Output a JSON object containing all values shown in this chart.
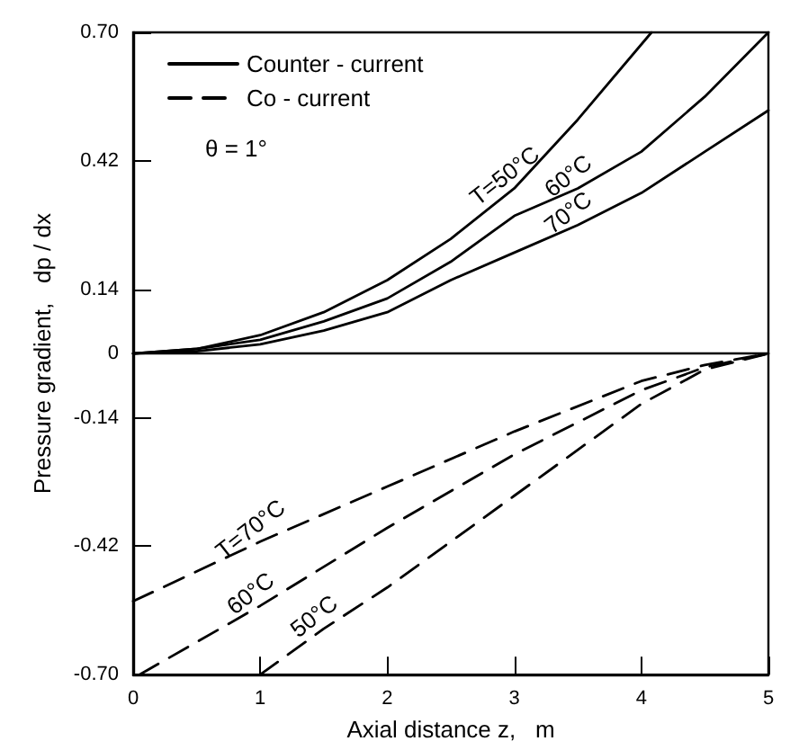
{
  "chart_data": {
    "type": "line",
    "xlabel": "Axial distance z,   m",
    "ylabel": "Pressure gradient,   dp / dx",
    "xlim": [
      0,
      5
    ],
    "xticks": [
      0,
      1,
      2,
      3,
      4,
      5
    ],
    "ylim": [
      -0.7,
      0.7
    ],
    "yticks": [
      {
        "value": -0.7,
        "label": "-0.70"
      },
      {
        "value": -0.42,
        "label": "-0.42"
      },
      {
        "value": -0.14,
        "label": "-0.14"
      },
      0,
      {
        "value": 0.14,
        "label": "0.14"
      },
      {
        "value": 0.42,
        "label": "0.42"
      },
      {
        "value": 0.7,
        "label": "0.70"
      }
    ],
    "grid": false,
    "legend": "top left",
    "marker": "none",
    "ref_lines": [
      {
        "axis": "y",
        "value": 0
      }
    ],
    "annotations": [
      "θ = 1°",
      {
        "text": "T=50°C",
        "x": 3,
        "y": 0.36
      },
      {
        "text": "60°C",
        "x": 3.5,
        "y": 0.36
      },
      {
        "text": "70°C",
        "x": 3.5,
        "y": 0.28
      },
      {
        "text": "T=70°C",
        "x": 1,
        "y": -0.41
      },
      {
        "text": "60°C",
        "x": 1,
        "y": -0.55
      },
      {
        "text": "50°C",
        "x": 1.5,
        "y": -0.6
      }
    ],
    "series": [
      {
        "name": "Counter - current",
        "color": "#000000",
        "line_style": "solid",
        "x": [
          0,
          0.5,
          1,
          1.5,
          2,
          2.5,
          3,
          3.5,
          4.08
        ],
        "values": [
          0,
          0.01,
          0.04,
          0.09,
          0.16,
          0.25,
          0.36,
          0.51,
          0.7
        ]
      },
      {
        "color": "#000000",
        "line_style": "solid",
        "x": [
          0,
          0.5,
          1,
          1.5,
          2,
          2.5,
          3,
          3.5,
          4,
          4.5,
          5
        ],
        "values": [
          0,
          0.01,
          0.03,
          0.07,
          0.12,
          0.2,
          0.3,
          0.36,
          0.44,
          0.56,
          0.7
        ]
      },
      {
        "color": "#000000",
        "line_style": "solid",
        "x": [
          0,
          0.5,
          1,
          1.5,
          2,
          2.5,
          3,
          3.5,
          4,
          4.5,
          5
        ],
        "values": [
          0,
          0.005,
          0.02,
          0.05,
          0.09,
          0.16,
          0.22,
          0.28,
          0.35,
          0.44,
          0.53
        ]
      },
      {
        "name": "Co - current",
        "color": "#000000",
        "line_style": "dashed",
        "x": [
          0,
          1,
          2,
          3,
          4,
          4.5,
          5
        ],
        "values": [
          -0.54,
          -0.41,
          -0.29,
          -0.17,
          -0.06,
          -0.025,
          0
        ]
      },
      {
        "color": "#000000",
        "line_style": "dashed",
        "x": [
          0.05,
          1,
          2,
          3,
          4,
          4.5,
          5
        ],
        "values": [
          -0.7,
          -0.55,
          -0.38,
          -0.22,
          -0.08,
          -0.03,
          0
        ]
      },
      {
        "color": "#000000",
        "line_style": "dashed",
        "x": [
          1,
          1.5,
          2,
          3,
          4,
          4.5,
          5
        ],
        "values": [
          -0.7,
          -0.6,
          -0.51,
          -0.31,
          -0.11,
          -0.035,
          0
        ]
      }
    ]
  }
}
